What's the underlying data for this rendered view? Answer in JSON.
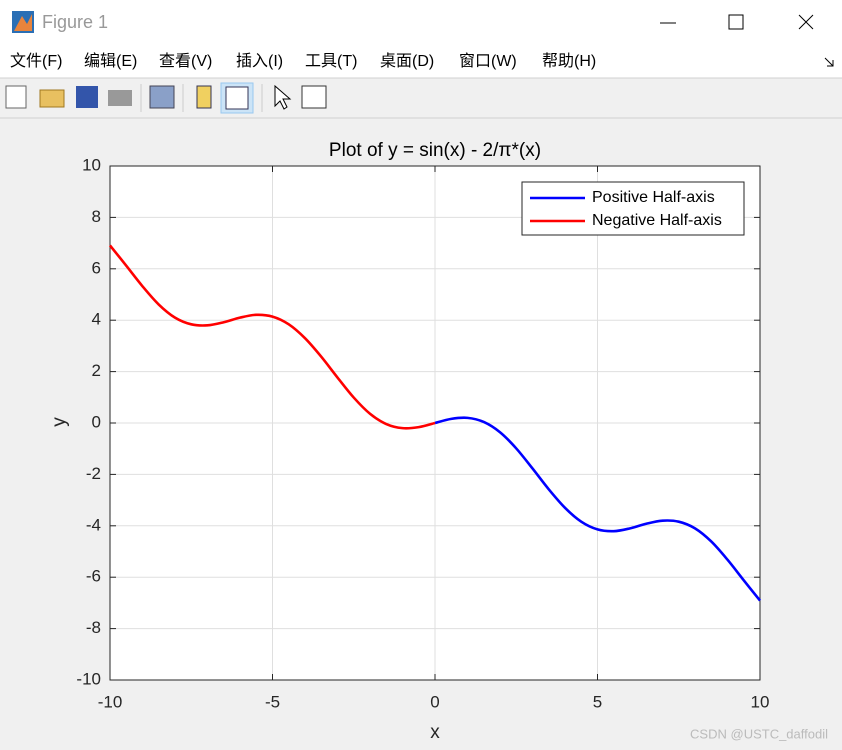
{
  "window": {
    "title": "Figure 1",
    "menu": [
      "文件(F)",
      "编辑(E)",
      "查看(V)",
      "插入(I)",
      "工具(T)",
      "桌面(D)",
      "窗口(W)",
      "帮助(H)"
    ],
    "watermark": "CSDN @USTC_daffodil"
  },
  "chart_data": {
    "type": "line",
    "title": "Plot of y = sin(x) - 2/π*(x)",
    "xlabel": "x",
    "ylabel": "y",
    "xlim": [
      -10,
      10
    ],
    "ylim": [
      -10,
      10
    ],
    "xticks": [
      -10,
      -5,
      0,
      5,
      10
    ],
    "yticks": [
      -10,
      -8,
      -6,
      -4,
      -2,
      0,
      2,
      4,
      6,
      8,
      10
    ],
    "grid": true,
    "legend": "northeast",
    "series": [
      {
        "name": "Positive Half-axis",
        "color": "#0000ff",
        "x": [
          0,
          0.5,
          1,
          1.5,
          2,
          2.5,
          3,
          3.5,
          4,
          4.5,
          5,
          5.5,
          6,
          6.5,
          7,
          7.5,
          8,
          8.5,
          9,
          9.5,
          10
        ],
        "values": [
          0,
          0.16,
          0.2,
          0.04,
          -0.36,
          -0.99,
          -1.77,
          -2.58,
          -3.3,
          -3.84,
          -4.14,
          -4.21,
          -4.1,
          -3.92,
          -3.8,
          -3.84,
          -4.1,
          -4.61,
          -5.32,
          -6.12,
          -6.91
        ]
      },
      {
        "name": "Negative Half-axis",
        "color": "#ff0000",
        "x": [
          -10,
          -9.5,
          -9,
          -8.5,
          -8,
          -7.5,
          -7,
          -6.5,
          -6,
          -5.5,
          -5,
          -4.5,
          -4,
          -3.5,
          -3,
          -2.5,
          -2,
          -1.5,
          -1,
          -0.5,
          0
        ],
        "values": [
          6.91,
          6.12,
          5.32,
          4.61,
          4.1,
          3.84,
          3.8,
          3.92,
          4.1,
          4.21,
          4.14,
          3.84,
          3.3,
          2.58,
          1.77,
          0.99,
          0.36,
          -0.04,
          -0.2,
          -0.16,
          0
        ]
      }
    ]
  }
}
